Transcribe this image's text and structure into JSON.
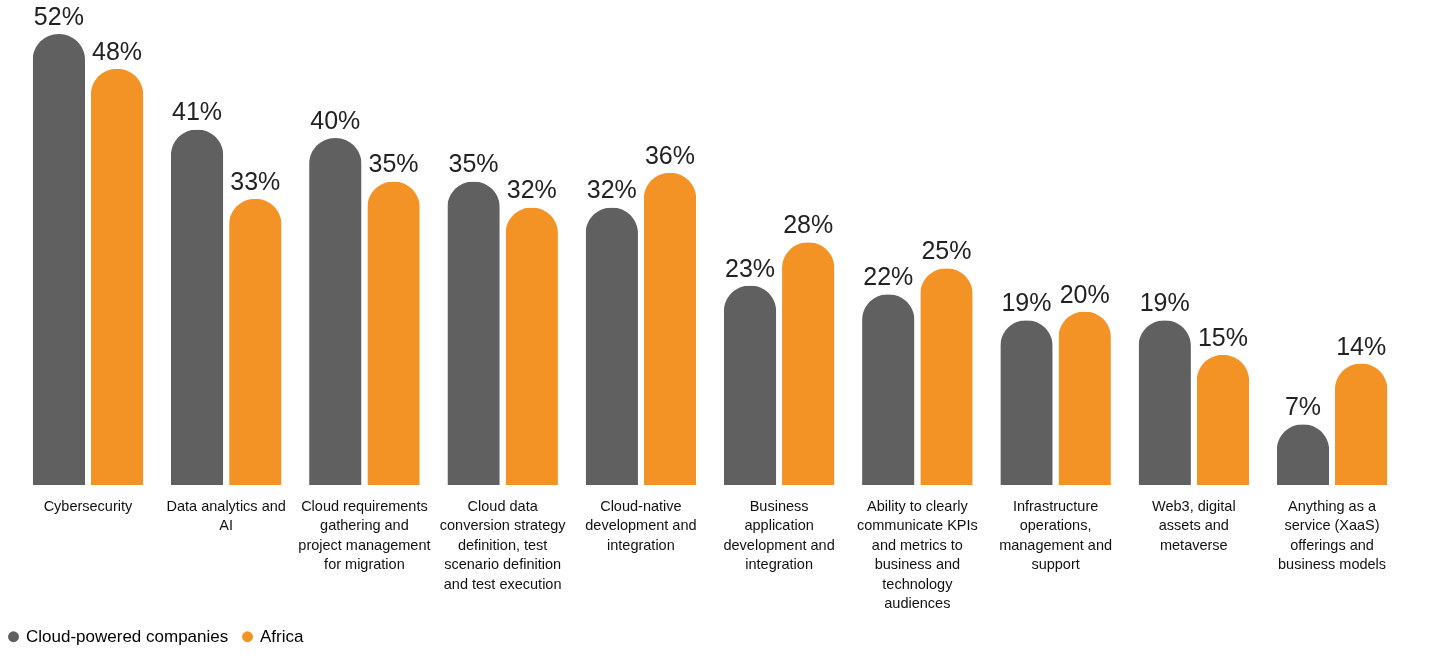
{
  "chart_data": {
    "type": "bar",
    "categories": [
      "Cybersecurity",
      "Data analytics and AI",
      "Cloud requirements gathering and project management for migration",
      "Cloud data conversion strategy definition, test scenario definition and test execution",
      "Cloud-native development and integration",
      "Business application development and integration",
      "Ability to clearly communicate KPIs and metrics to business and technology audiences",
      "Infrastructure operations, management and support",
      "Web3, digital assets and metaverse",
      "Anything as a service (XaaS) offerings and business models"
    ],
    "series": [
      {
        "name": "Cloud-powered companies",
        "color": "#606060",
        "values": [
          52,
          41,
          40,
          35,
          32,
          23,
          22,
          19,
          19,
          7
        ],
        "value_labels": [
          "52%",
          "41%",
          "40%",
          "35%",
          "32%",
          "23%",
          "22%",
          "19%",
          "19%",
          "7%"
        ]
      },
      {
        "name": "Africa",
        "color": "#f39325",
        "values": [
          48,
          33,
          35,
          32,
          36,
          28,
          25,
          20,
          15,
          14
        ],
        "value_labels": [
          "48%",
          "33%",
          "35%",
          "32%",
          "36%",
          "28%",
          "25%",
          "20%",
          "15%",
          "14%"
        ]
      }
    ],
    "legend": "bottom"
  }
}
